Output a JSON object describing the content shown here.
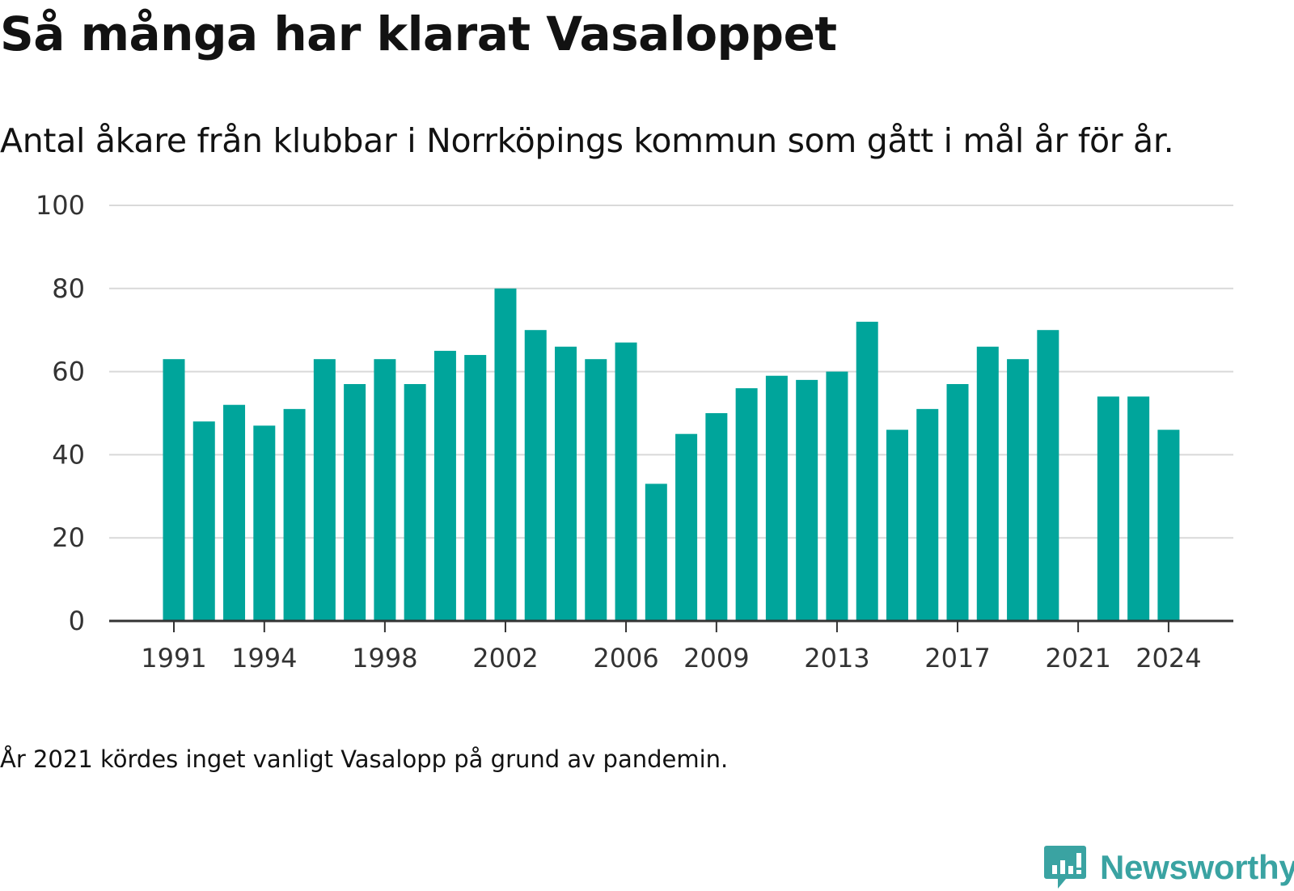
{
  "header": {
    "title": "Så många har klarat Vasaloppet",
    "subtitle": "Antal åkare från klubbar i Norrköpings kommun som gått i mål år för år."
  },
  "footnote": "År 2021 kördes inget vanligt Vasalopp på grund av pandemin.",
  "brand": {
    "name": "Newsworthy",
    "color": "#3aa3a2"
  },
  "chart_data": {
    "type": "bar",
    "title": "Så många har klarat Vasaloppet",
    "subtitle": "Antal åkare från klubbar i Norrköpings kommun som gått i mål år för år.",
    "xlabel": "",
    "ylabel": "",
    "bar_color": "#00a59b",
    "grid": true,
    "ylim": [
      0,
      100
    ],
    "yticks": [
      0,
      20,
      40,
      60,
      80,
      100
    ],
    "xticks": [
      1991,
      1994,
      1998,
      2002,
      2006,
      2009,
      2013,
      2017,
      2021,
      2024
    ],
    "categories": [
      1991,
      1992,
      1993,
      1994,
      1995,
      1996,
      1997,
      1998,
      1999,
      2000,
      2001,
      2002,
      2003,
      2004,
      2005,
      2006,
      2007,
      2008,
      2009,
      2010,
      2011,
      2012,
      2013,
      2014,
      2015,
      2016,
      2017,
      2018,
      2019,
      2020,
      2021,
      2022,
      2023,
      2024
    ],
    "values": [
      63,
      48,
      52,
      47,
      51,
      63,
      57,
      63,
      57,
      65,
      64,
      80,
      70,
      66,
      63,
      67,
      33,
      45,
      50,
      56,
      59,
      58,
      60,
      72,
      46,
      51,
      57,
      66,
      63,
      70,
      null,
      54,
      54,
      46
    ]
  }
}
